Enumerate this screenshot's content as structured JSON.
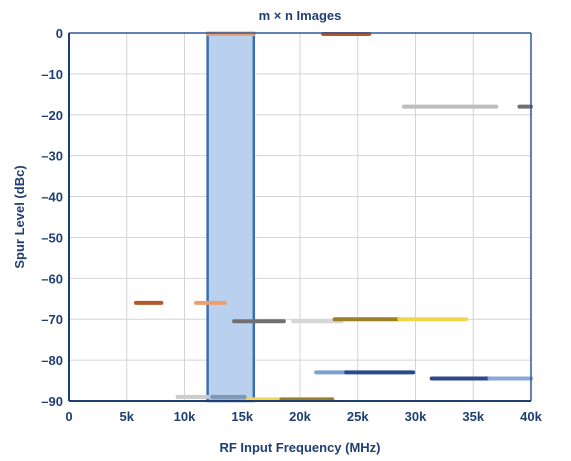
{
  "chart_data": {
    "type": "bar",
    "title": "m × n Images",
    "xlabel": "RF Input Frequency (MHz)",
    "ylabel": "Spur Level (dBc)",
    "xlim": [
      0,
      40000
    ],
    "ylim": [
      -90,
      0
    ],
    "grid": true,
    "x_ticks": [
      {
        "value": 0,
        "label": "0"
      },
      {
        "value": 5000,
        "label": "5k"
      },
      {
        "value": 10000,
        "label": "10k"
      },
      {
        "value": 15000,
        "label": "15k"
      },
      {
        "value": 20000,
        "label": "20k"
      },
      {
        "value": 25000,
        "label": "25k"
      },
      {
        "value": 30000,
        "label": "30k"
      },
      {
        "value": 35000,
        "label": "35k"
      },
      {
        "value": 40000,
        "label": "40k"
      }
    ],
    "y_ticks": [
      {
        "value": 0,
        "label": "0"
      },
      {
        "value": -10,
        "label": "–10"
      },
      {
        "value": -20,
        "label": "–20"
      },
      {
        "value": -30,
        "label": "–30"
      },
      {
        "value": -40,
        "label": "–40"
      },
      {
        "value": -50,
        "label": "–50"
      },
      {
        "value": -60,
        "label": "–60"
      },
      {
        "value": -70,
        "label": "–70"
      },
      {
        "value": -80,
        "label": "–80"
      },
      {
        "value": -90,
        "label": "–90"
      }
    ],
    "highlight_band": {
      "x_start": 12000,
      "x_end": 16000,
      "fill": "#b9d0ee",
      "stroke": "#3b6fb0"
    },
    "segments": [
      {
        "x_start": 12000,
        "x_end": 16000,
        "level": 0,
        "color": "#e8a070"
      },
      {
        "x_start": 22000,
        "x_end": 26000,
        "level": 0,
        "color": "#b5572a"
      },
      {
        "x_start": 29000,
        "x_end": 37000,
        "level": -18,
        "color": "#bdbdbd"
      },
      {
        "x_start": 39000,
        "x_end": 40000,
        "level": -18,
        "color": "#707070"
      },
      {
        "x_start": 5800,
        "x_end": 8000,
        "level": -66,
        "color": "#b5572a"
      },
      {
        "x_start": 11000,
        "x_end": 13500,
        "level": -66,
        "color": "#e8a070"
      },
      {
        "x_start": 14300,
        "x_end": 18600,
        "level": -70.5,
        "color": "#707070"
      },
      {
        "x_start": 19400,
        "x_end": 23600,
        "level": -70.5,
        "color": "#d6d6d6"
      },
      {
        "x_start": 23000,
        "x_end": 28600,
        "level": -70,
        "color": "#9c8024"
      },
      {
        "x_start": 28600,
        "x_end": 34400,
        "level": -70,
        "color": "#f0d84a"
      },
      {
        "x_start": 21400,
        "x_end": 24000,
        "level": -83,
        "color": "#7c9fd4"
      },
      {
        "x_start": 24000,
        "x_end": 29800,
        "level": -83,
        "color": "#2b4a8c"
      },
      {
        "x_start": 31400,
        "x_end": 36400,
        "level": -84.5,
        "color": "#2b4a8c"
      },
      {
        "x_start": 36400,
        "x_end": 40000,
        "level": -84.5,
        "color": "#8aa6d8"
      },
      {
        "x_start": 9400,
        "x_end": 12000,
        "level": -89,
        "color": "#cccccc"
      },
      {
        "x_start": 12400,
        "x_end": 15200,
        "level": -89,
        "color": "#7f98b0"
      },
      {
        "x_start": 15500,
        "x_end": 18600,
        "level": -89.6,
        "color": "#f0d84a"
      },
      {
        "x_start": 18400,
        "x_end": 22800,
        "level": -89.6,
        "color": "#9c8024"
      }
    ]
  }
}
